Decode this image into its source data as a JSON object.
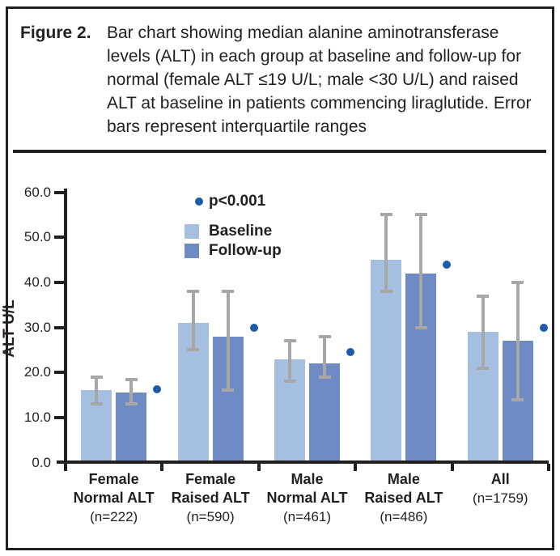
{
  "figure": {
    "label": "Figure 2.",
    "caption": "Bar chart showing median alanine aminotransferase levels (ALT) in each group at baseline and follow-up for normal (female ALT ≤19 U/L; male <30 U/L) and raised ALT at baseline in patients commencing liraglutide. Error bars represent interquartile ranges"
  },
  "legend": {
    "significance_label": "p<0.001",
    "items": [
      "Baseline",
      "Follow-up"
    ]
  },
  "colors": {
    "baseline_bar": "#a5bfe1",
    "followup_bar": "#6e8bc3",
    "significance_dot": "#1d5ba8",
    "error_bar": "#a7a7a7",
    "ink": "#231f20"
  },
  "chart_data": {
    "type": "bar",
    "ylabel": "ALT U/L",
    "ylim": [
      0,
      60
    ],
    "ytick_labels": [
      "0.0",
      "10.0",
      "20.0",
      "30.0",
      "40.0",
      "50.0",
      "60.0"
    ],
    "grid": false,
    "legend_position": "top-inside",
    "categories": [
      {
        "lines": [
          "Female",
          "Normal ALT"
        ],
        "n": "(n=222)"
      },
      {
        "lines": [
          "Female",
          "Raised ALT"
        ],
        "n": "(n=590)"
      },
      {
        "lines": [
          "Male",
          "Normal ALT"
        ],
        "n": "(n=461)"
      },
      {
        "lines": [
          "Male",
          "Raised ALT"
        ],
        "n": "(n=486)"
      },
      {
        "lines": [
          "All"
        ],
        "n": "(n=1759)"
      }
    ],
    "series": [
      {
        "name": "Baseline",
        "values": [
          16,
          31,
          23,
          45,
          29
        ],
        "iqr_low": [
          13,
          25,
          18,
          38,
          21
        ],
        "iqr_high": [
          19,
          38,
          27,
          55,
          37
        ]
      },
      {
        "name": "Follow-up",
        "values": [
          15.5,
          28,
          22,
          42,
          27
        ],
        "iqr_low": [
          13,
          16,
          19,
          30,
          14
        ],
        "iqr_high": [
          18.5,
          38,
          28,
          55,
          40
        ]
      }
    ],
    "significance_dots": {
      "label": "p<0.001",
      "applies_to": "all categories",
      "dot_y": [
        16.3,
        30,
        24.5,
        44,
        30
      ]
    }
  }
}
